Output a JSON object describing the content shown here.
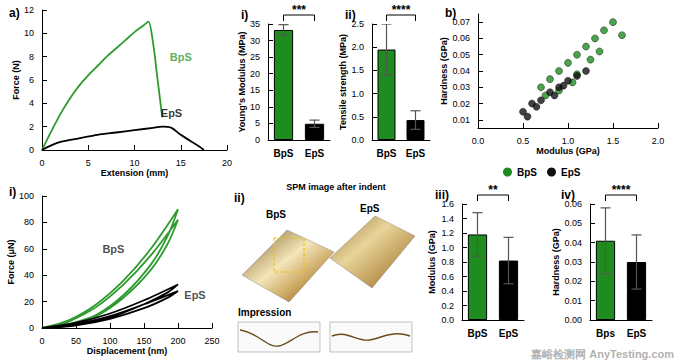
{
  "chart_data": [
    {
      "panel": "a)",
      "type": "line",
      "x_label": "Extension (mm)",
      "y_label": "Force (N)",
      "xlim": [
        0,
        20
      ],
      "xticks": [
        0,
        5,
        10,
        15,
        20
      ],
      "ylim": [
        0,
        12
      ],
      "yticks": [
        0,
        2,
        4,
        6,
        8,
        10,
        12
      ],
      "series": [
        {
          "name": "BpS",
          "color": "#2e9b2e",
          "x": [
            0,
            1,
            2,
            3,
            4,
            5,
            6,
            7,
            8,
            9,
            10,
            11,
            11.5,
            12,
            12.5,
            13
          ],
          "values": [
            0,
            1.6,
            3.1,
            4.4,
            5.5,
            6.4,
            7.2,
            8.0,
            8.7,
            9.4,
            10.1,
            10.7,
            11.0,
            9.2,
            6.0,
            2.8
          ]
        },
        {
          "name": "EpS",
          "color": "#000000",
          "x": [
            0,
            1,
            2,
            4,
            6,
            8,
            10,
            12,
            13,
            14,
            15,
            16,
            17,
            17.5
          ],
          "values": [
            0,
            0.4,
            0.7,
            1.0,
            1.3,
            1.5,
            1.7,
            1.9,
            2.0,
            1.9,
            1.3,
            0.8,
            0.3,
            0
          ]
        }
      ],
      "annotations": [
        {
          "text": "BpS",
          "x": 15,
          "y": 8,
          "color": "#2e9b2e"
        },
        {
          "text": "EpS",
          "x": 14,
          "y": 3.2,
          "color": "#000000"
        }
      ]
    },
    {
      "panel": "i)",
      "type": "bar",
      "y_label": "Young's Modulus (MPa)",
      "categories": [
        "BpS",
        "EpS"
      ],
      "values": [
        33.2,
        4.9
      ],
      "errors": [
        1.6,
        1.1
      ],
      "colors": [
        "#1e8c1e",
        "#000000"
      ],
      "ylim": [
        0,
        35
      ],
      "yticks": [
        0,
        5,
        10,
        15,
        20,
        25,
        30,
        35
      ],
      "annotations": [
        {
          "text": "***",
          "between": [
            "BpS",
            "EpS"
          ]
        }
      ]
    },
    {
      "panel": "ii)",
      "type": "bar",
      "y_label": "Tensile strength (MPa)",
      "categories": [
        "BpS",
        "EpS"
      ],
      "values": [
        1.95,
        0.43
      ],
      "errors": [
        0.55,
        0.2
      ],
      "colors": [
        "#1e8c1e",
        "#000000"
      ],
      "ylim": [
        0,
        2.5
      ],
      "yticks": [
        {
          "value": 0,
          "label": "0.0"
        },
        0.5,
        {
          "value": 1,
          "label": "1.0"
        },
        1.5,
        {
          "value": 2,
          "label": "2.0"
        },
        2.5
      ],
      "annotations": [
        {
          "text": "****",
          "between": [
            "BpS",
            "EpS"
          ]
        }
      ]
    },
    {
      "panel": "b)",
      "type": "scatter",
      "x_label": "Modulus (GPa)",
      "y_label": "Hardness (GPa)",
      "xlim": [
        0,
        2
      ],
      "xticks": [
        {
          "value": 0,
          "label": "0.0"
        },
        0.5,
        {
          "value": 1,
          "label": "1.0"
        },
        1.5,
        {
          "value": 2,
          "label": "2.0"
        }
      ],
      "ylim": [
        0.005,
        0.075
      ],
      "yticks": [
        0.01,
        0.02,
        0.03,
        0.04,
        0.05,
        0.06,
        0.07
      ],
      "legend": "bottom",
      "series": [
        {
          "name": "BpS",
          "color": "#1e8c1e",
          "marker": "circle",
          "x": [
            0.7,
            0.8,
            0.9,
            1.0,
            1.1,
            1.2,
            1.3,
            1.4,
            1.5,
            0.9,
            1.1,
            1.25,
            1.35,
            1.6,
            1.05,
            0.75
          ],
          "values": [
            0.03,
            0.035,
            0.04,
            0.045,
            0.05,
            0.055,
            0.06,
            0.065,
            0.07,
            0.028,
            0.038,
            0.047,
            0.052,
            0.062,
            0.033,
            0.025
          ]
        },
        {
          "name": "EpS",
          "color": "#111111",
          "marker": "circle",
          "x": [
            0.5,
            0.6,
            0.7,
            0.8,
            0.9,
            1.0,
            1.1,
            0.65,
            0.85,
            1.2,
            0.55,
            0.95
          ],
          "values": [
            0.015,
            0.02,
            0.022,
            0.027,
            0.03,
            0.034,
            0.037,
            0.018,
            0.025,
            0.04,
            0.012,
            0.031
          ]
        }
      ]
    },
    {
      "panel": "i)",
      "type": "line",
      "x_label": "Displacement (nm)",
      "y_label": "Force (μN)",
      "xlim": [
        0,
        250
      ],
      "xticks": [
        0,
        50,
        100,
        150,
        200,
        250
      ],
      "ylim": [
        0,
        100
      ],
      "yticks": [
        0,
        20,
        40,
        60,
        80,
        100
      ],
      "series": [
        {
          "name": "BpS",
          "color": "#2e9b2e",
          "x": [
            0,
            40,
            80,
            120,
            160,
            200,
            185,
            160,
            120,
            80,
            40,
            10,
            40,
            80,
            120,
            160,
            200,
            185,
            160,
            120,
            80,
            40,
            5
          ],
          "values": [
            0,
            6,
            18,
            36,
            60,
            90,
            70,
            48,
            25,
            10,
            3,
            0,
            5,
            16,
            33,
            55,
            82,
            64,
            44,
            23,
            9,
            2,
            0
          ]
        },
        {
          "name": "EpS",
          "color": "#000000",
          "x": [
            0,
            50,
            100,
            150,
            200,
            185,
            150,
            100,
            50,
            10,
            50,
            100,
            150,
            200,
            185,
            150,
            100,
            50,
            5
          ],
          "values": [
            0,
            4,
            11,
            21,
            33,
            27,
            18,
            8,
            2,
            0,
            3,
            9,
            18,
            28,
            23,
            15,
            7,
            2,
            0
          ]
        }
      ],
      "annotations": [
        {
          "text": "BpS",
          "x": 105,
          "y": 60,
          "color": "#222222"
        },
        {
          "text": "EpS",
          "x": 225,
          "y": 25,
          "color": "#222222"
        }
      ]
    },
    {
      "panel": "iii)",
      "type": "bar",
      "y_label": "Modulus (GPa)",
      "categories": [
        "BpS",
        "EpS"
      ],
      "values": [
        1.18,
        0.82
      ],
      "errors": [
        0.3,
        0.32
      ],
      "colors": [
        "#1e8c1e",
        "#000000"
      ],
      "ylim": [
        0,
        1.6
      ],
      "yticks": [
        {
          "value": 0,
          "label": "0.0"
        },
        0.2,
        0.4,
        0.6,
        0.8,
        {
          "value": 1,
          "label": "1.0"
        },
        1.2,
        1.4,
        1.6
      ],
      "annotations": [
        {
          "text": "**",
          "between": [
            "BpS",
            "EpS"
          ]
        }
      ]
    },
    {
      "panel": "iv)",
      "type": "bar",
      "y_label": "Hardness (GPa)",
      "categories": [
        "Bps",
        "EpS"
      ],
      "values": [
        0.041,
        0.03
      ],
      "errors": [
        0.017,
        0.014
      ],
      "colors": [
        "#1e8c1e",
        "#000000"
      ],
      "ylim": [
        0,
        0.06
      ],
      "yticks": [
        {
          "value": 0,
          "label": "0.00"
        },
        0.01,
        0.02,
        0.03,
        0.04,
        0.05,
        0.06
      ],
      "annotations": [
        {
          "text": "****",
          "between": [
            "Bps",
            "EpS"
          ]
        }
      ]
    }
  ],
  "image_panel": {
    "panel": "ii)",
    "title": "SPM image after indent",
    "labels": [
      "BpS",
      "EpS"
    ],
    "annotation": "Impression"
  },
  "watermark": [
    "嘉峪检测网",
    "AnyTesting.com"
  ]
}
